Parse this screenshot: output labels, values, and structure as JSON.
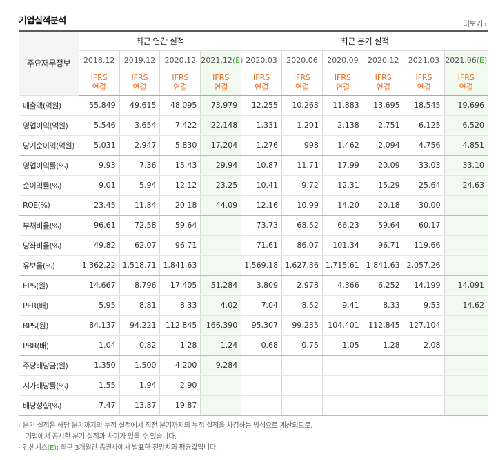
{
  "header": {
    "title": "기업실적분석",
    "more_label": "더보기",
    "more_icon": "chevron-right-icon"
  },
  "table": {
    "row_header_label": "주요재무정보",
    "group_annual": "최근 연간 실적",
    "group_quarter": "최근 분기 실적",
    "periods": [
      {
        "label": "2018.12",
        "est": false
      },
      {
        "label": "2019.12",
        "est": false
      },
      {
        "label": "2020.12",
        "est": false
      },
      {
        "label": "2021.12",
        "est": true
      },
      {
        "label": "2020.03",
        "est": false
      },
      {
        "label": "2020.06",
        "est": false
      },
      {
        "label": "2020.09",
        "est": false
      },
      {
        "label": "2020.12",
        "est": false
      },
      {
        "label": "2021.03",
        "est": false
      },
      {
        "label": "2021.06",
        "est": true
      }
    ],
    "est_mark": "(E)",
    "basis_line1": "IFRS",
    "basis_line2": "연결",
    "rows": [
      {
        "label": "매출액(억원)",
        "values": [
          "55,849",
          "49,615",
          "48,095",
          "73,979",
          "12,255",
          "10,263",
          "11,883",
          "13,695",
          "18,545",
          "19,696"
        ],
        "group_end": false
      },
      {
        "label": "영업이익(억원)",
        "values": [
          "5,546",
          "3,654",
          "7,422",
          "22,148",
          "1,331",
          "1,201",
          "2,138",
          "2,751",
          "6,125",
          "6,520"
        ],
        "group_end": false
      },
      {
        "label": "당기순이익(억원)",
        "values": [
          "5,031",
          "2,947",
          "5,830",
          "17,204",
          "1,276",
          "998",
          "1,462",
          "2,094",
          "4,756",
          "4,851"
        ],
        "group_end": true
      },
      {
        "label": "영업이익률(%)",
        "values": [
          "9.93",
          "7.36",
          "15.43",
          "29.94",
          "10.87",
          "11.71",
          "17.99",
          "20.09",
          "33.03",
          "33.10"
        ],
        "group_end": false
      },
      {
        "label": "순이익률(%)",
        "values": [
          "9.01",
          "5.94",
          "12.12",
          "23.25",
          "10.41",
          "9.72",
          "12.31",
          "15.29",
          "25.64",
          "24.63"
        ],
        "group_end": false
      },
      {
        "label": "ROE(%)",
        "values": [
          "23.45",
          "11.84",
          "20.18",
          "44.09",
          "12.16",
          "10.99",
          "14.20",
          "20.18",
          "30.00",
          ""
        ],
        "group_end": true
      },
      {
        "label": "부채비율(%)",
        "values": [
          "96.61",
          "72.58",
          "59.64",
          "",
          "73.73",
          "68.52",
          "66.23",
          "59.64",
          "60.17",
          ""
        ],
        "group_end": false
      },
      {
        "label": "당좌비율(%)",
        "values": [
          "49.82",
          "62.07",
          "96.71",
          "",
          "71.61",
          "86.07",
          "101.34",
          "96.71",
          "119.66",
          ""
        ],
        "group_end": false
      },
      {
        "label": "유보율(%)",
        "values": [
          "1,362.22",
          "1,518.71",
          "1,841.63",
          "",
          "1,569.18",
          "1,627.36",
          "1,715.61",
          "1,841.63",
          "2,057.26",
          ""
        ],
        "group_end": true
      },
      {
        "label": "EPS(원)",
        "values": [
          "14,667",
          "8,796",
          "17,405",
          "51,284",
          "3,809",
          "2,978",
          "4,366",
          "6,252",
          "14,199",
          "14,091"
        ],
        "group_end": false
      },
      {
        "label": "PER(배)",
        "values": [
          "5.95",
          "8.81",
          "8.33",
          "4.02",
          "7.04",
          "8.52",
          "9.41",
          "8.33",
          "9.53",
          "14.62"
        ],
        "group_end": false
      },
      {
        "label": "BPS(원)",
        "values": [
          "84,137",
          "94,221",
          "112,845",
          "166,390",
          "95,307",
          "99,235",
          "104,401",
          "112,845",
          "127,104",
          ""
        ],
        "group_end": false
      },
      {
        "label": "PBR(배)",
        "values": [
          "1.04",
          "0.82",
          "1.28",
          "1.24",
          "0.68",
          "0.75",
          "1.05",
          "1.28",
          "2.08",
          ""
        ],
        "group_end": true
      },
      {
        "label": "주당배당금(원)",
        "values": [
          "1,350",
          "1,500",
          "4,200",
          "9,284",
          "",
          "",
          "",
          "",
          "",
          ""
        ],
        "group_end": false
      },
      {
        "label": "시가배당률(%)",
        "values": [
          "1.55",
          "1.94",
          "2.90",
          "",
          "",
          "",
          "",
          "",
          "",
          ""
        ],
        "group_end": false
      },
      {
        "label": "배당성향(%)",
        "values": [
          "7.47",
          "13.87",
          "19.87",
          "",
          "",
          "",
          "",
          "",
          "",
          ""
        ],
        "group_end": true
      }
    ]
  },
  "notes": {
    "line1": "분기 실적은 해당 분기까지의 누적 실적에서 직전 분기까지의 누적 실적을 차감하는 방식으로 계산되므로,",
    "line2": "기업에서 공시한 분기 실적과 차이가 있을 수 있습니다.",
    "line3_prefix": "컨센서스",
    "line3_mark": "(E)",
    "line3_suffix": ": 최근 3개월간 증권사에서 발표한 전망치의 평균값입니다."
  },
  "colors": {
    "basis_orange": "#ec6b24",
    "estimate_green": "#4c9e3a",
    "estimate_bg": "#f2f9ee"
  }
}
